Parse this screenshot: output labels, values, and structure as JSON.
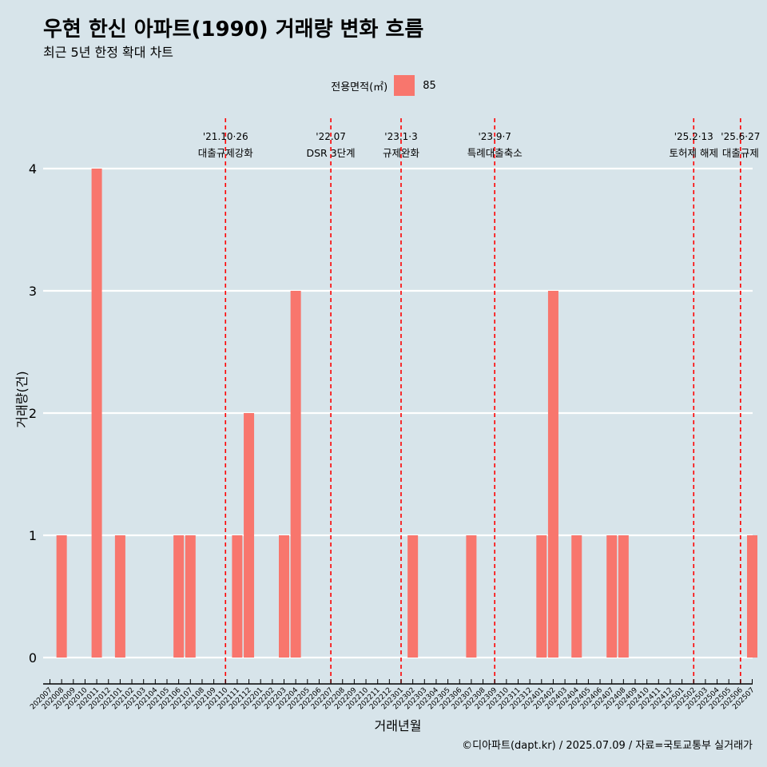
{
  "chart_data": {
    "type": "bar",
    "title": "우현 한신 아파트(1990) 거래량 변화 흐름",
    "subtitle": "최근 5년 한정 확대 차트",
    "xlabel": "거래년월",
    "ylabel": "거래량(건)",
    "ylim": [
      0,
      4
    ],
    "yticks": [
      0,
      1,
      2,
      3,
      4
    ],
    "grid": true,
    "legend": {
      "title": "전용면적(㎡)",
      "position": "top",
      "entries": [
        {
          "name": "85",
          "color": "#f8766d"
        }
      ]
    },
    "categories": [
      "202007",
      "202008",
      "202009",
      "202010",
      "202011",
      "202012",
      "202101",
      "202102",
      "202103",
      "202104",
      "202105",
      "202106",
      "202107",
      "202108",
      "202109",
      "202110",
      "202111",
      "202112",
      "202201",
      "202202",
      "202203",
      "202204",
      "202205",
      "202206",
      "202207",
      "202208",
      "202209",
      "202210",
      "202211",
      "202212",
      "202301",
      "202302",
      "202303",
      "202304",
      "202305",
      "202306",
      "202307",
      "202308",
      "202309",
      "202310",
      "202311",
      "202312",
      "202401",
      "202402",
      "202403",
      "202404",
      "202405",
      "202406",
      "202407",
      "202408",
      "202409",
      "202410",
      "202411",
      "202412",
      "202501",
      "202502",
      "202503",
      "202504",
      "202505",
      "202506",
      "202507"
    ],
    "series": [
      {
        "name": "85",
        "color": "#f8766d",
        "values": [
          0,
          1,
          0,
          0,
          4,
          0,
          1,
          0,
          0,
          0,
          0,
          1,
          1,
          0,
          0,
          0,
          1,
          2,
          0,
          0,
          1,
          3,
          0,
          0,
          0,
          0,
          0,
          0,
          0,
          0,
          0,
          1,
          0,
          0,
          0,
          0,
          1,
          0,
          0,
          0,
          0,
          0,
          1,
          3,
          0,
          1,
          0,
          0,
          1,
          1,
          0,
          0,
          0,
          0,
          0,
          0,
          0,
          0,
          0,
          0,
          1
        ]
      }
    ],
    "annotations": [
      {
        "x": "202110",
        "date": "'21.10·26",
        "label": "대출규제강화"
      },
      {
        "x": "202207",
        "date": "'22.07",
        "label": "DSR 3단계"
      },
      {
        "x": "202301",
        "date": "'23.1·3",
        "label": "규제완화"
      },
      {
        "x": "202309",
        "date": "'23.9·7",
        "label": "특례대출축소"
      },
      {
        "x": "202502",
        "date": "'25.2·13",
        "label": "토허제 해제"
      },
      {
        "x": "202506",
        "date": "'25.6·27",
        "label": "대출규제"
      }
    ],
    "annotation_color": "#ff0000"
  },
  "caption": "©디아파트(dapt.kr) / 2025.07.09 / 자료=국토교통부 실거래가"
}
